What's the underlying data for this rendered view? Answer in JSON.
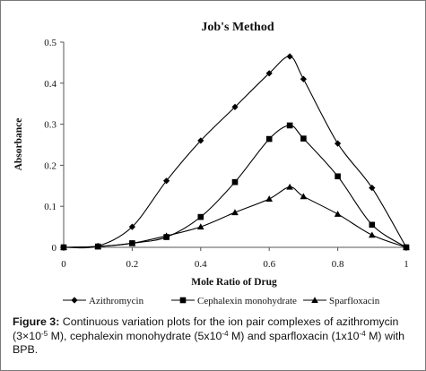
{
  "chart_data": {
    "type": "line",
    "title": "Job's Method",
    "xlabel": "Mole Ratio of Drug",
    "ylabel": "Absorbance",
    "xlim": [
      0,
      1
    ],
    "ylim": [
      0,
      0.5
    ],
    "xticks": [
      "0",
      "0.2",
      "0.4",
      "0.6",
      "0.8",
      "1"
    ],
    "yticks": [
      "0",
      "0.1",
      "0.2",
      "0.3",
      "0.4",
      "0.5"
    ],
    "grid": false,
    "legend_position": "bottom",
    "series": [
      {
        "name": "Azithromycin",
        "marker": "diamond",
        "x": [
          0,
          0.1,
          0.2,
          0.3,
          0.4,
          0.5,
          0.6,
          0.66,
          0.7,
          0.8,
          0.9,
          1.0
        ],
        "y": [
          0.0,
          0.003,
          0.05,
          0.162,
          0.26,
          0.342,
          0.424,
          0.465,
          0.41,
          0.253,
          0.145,
          0.0
        ]
      },
      {
        "name": "Cephalexin monohydrate",
        "marker": "square",
        "x": [
          0,
          0.1,
          0.2,
          0.3,
          0.4,
          0.5,
          0.6,
          0.66,
          0.7,
          0.8,
          0.9,
          1.0
        ],
        "y": [
          0.0,
          0.002,
          0.01,
          0.025,
          0.074,
          0.159,
          0.264,
          0.297,
          0.265,
          0.173,
          0.055,
          0.0
        ]
      },
      {
        "name": "Sparfloxacin",
        "marker": "triangle",
        "x": [
          0,
          0.1,
          0.2,
          0.3,
          0.4,
          0.5,
          0.6,
          0.66,
          0.7,
          0.8,
          0.9,
          1.0
        ],
        "y": [
          0.0,
          0.002,
          0.01,
          0.028,
          0.05,
          0.085,
          0.118,
          0.147,
          0.124,
          0.081,
          0.03,
          0.0
        ]
      }
    ]
  },
  "caption": {
    "label": "Figure 3:",
    "text_1": " Continuous variation plots for the ion pair complexes of azithromycin (3×10",
    "exp_1": "-5",
    "text_2": " M), cephalexin monohydrate (5x10",
    "exp_2": "-4",
    "text_3": " M) and sparfloxacin (1x10",
    "exp_3": "-4",
    "text_4": " M) with BPB."
  }
}
